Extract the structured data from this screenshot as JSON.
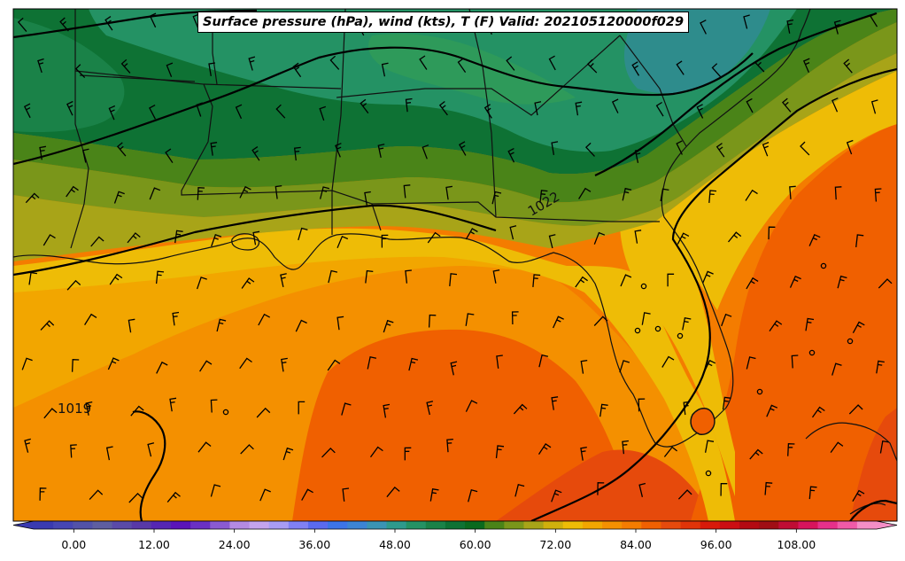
{
  "title": "Surface pressure (hPa), wind (kts), T (F) Valid: 202105120000f029",
  "contour_labels": [
    {
      "text": "1019",
      "value": 1019
    },
    {
      "text": "1022",
      "value": 1022
    }
  ],
  "colorbar": {
    "min": -6,
    "max": 120,
    "step": 3,
    "tick_labels": [
      "0.00",
      "12.00",
      "24.00",
      "36.00",
      "48.00",
      "60.00",
      "72.00",
      "84.00",
      "96.00",
      "108.00"
    ],
    "tick_values": [
      0,
      12,
      24,
      36,
      48,
      60,
      72,
      84,
      96,
      108
    ],
    "colors": [
      "#3a3ab0",
      "#4646b2",
      "#5252a8",
      "#5e5ea0",
      "#5a4aa8",
      "#5838a8",
      "#5526b2",
      "#5a14b8",
      "#6a30c4",
      "#8a5ad2",
      "#b48ae2",
      "#c4a4ee",
      "#a89cf4",
      "#8080f4",
      "#5a6af0",
      "#3c74e8",
      "#3c84d4",
      "#3a94b4",
      "#2e9a8c",
      "#249264",
      "#1a8248",
      "#0e7234",
      "#0a6a1e",
      "#4a8418",
      "#7a961a",
      "#a8a418",
      "#d0b00c",
      "#eebc06",
      "#f2a600",
      "#f49000",
      "#f47c00",
      "#f06000",
      "#e64a0c",
      "#e03408",
      "#d81a0a",
      "#cc0e12",
      "#b40a12",
      "#a00e14",
      "#c00c34",
      "#d8145c",
      "#e6308a",
      "#f05aa8",
      "#f48ec6"
    ]
  },
  "temperature_colors": {
    "blue_green": "#2e8c8c",
    "green_mid": "#249264",
    "green_light": "#2e9a5a",
    "green_dark": "#0e7234",
    "olive_dark": "#4a8418",
    "olive": "#7a961a",
    "yellow_olive": "#a8a418",
    "yellow": "#eebc06",
    "orange_light": "#f2a600",
    "orange": "#f49000",
    "orange_deep": "#f47c00",
    "orange_red": "#f06000",
    "red_orange": "#e64a0c"
  }
}
